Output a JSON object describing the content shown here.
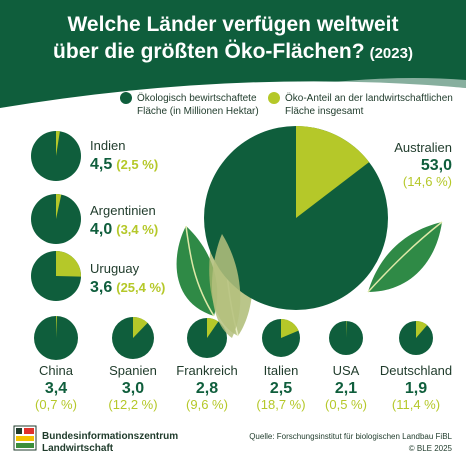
{
  "header": {
    "title_line1": "Welche Länder verfügen weltweit",
    "title_line2": "über die größten Öko-Flächen?",
    "year": "(2023)"
  },
  "legend": {
    "area_line1": "Ökologisch bewirtschaftete",
    "area_line2": "Fläche (in Millionen Hektar)",
    "share_line1": "Öko-Anteil an der landwirtschaftlichen",
    "share_line2": "Fläche insgesamt"
  },
  "colors": {
    "area": "#0f5e3c",
    "share": "#b5c829",
    "header": "#0f5e3c",
    "text": "#1f3b2b"
  },
  "chart_data": {
    "type": "pie",
    "title": "Welche Länder verfügen weltweit über die größten Öko-Flächen? (2023)",
    "series": [
      {
        "name": "Ökologisch bewirtschaftete Fläche (in Millionen Hektar)"
      },
      {
        "name": "Öko-Anteil an der landwirtschaftlichen Fläche insgesamt"
      }
    ],
    "countries": [
      {
        "name": "Australien",
        "area": 53.0,
        "area_label": "53,0",
        "share": 14.6,
        "share_label": "(14,6 %)"
      },
      {
        "name": "Indien",
        "area": 4.5,
        "area_label": "4,5",
        "share": 2.5,
        "share_label": "(2,5 %)"
      },
      {
        "name": "Argentinien",
        "area": 4.0,
        "area_label": "4,0",
        "share": 3.4,
        "share_label": "(3,4 %)"
      },
      {
        "name": "Uruguay",
        "area": 3.6,
        "area_label": "3,6",
        "share": 25.4,
        "share_label": "(25,4 %)"
      },
      {
        "name": "China",
        "area": 3.4,
        "area_label": "3,4",
        "share": 0.7,
        "share_label": "(0,7 %)"
      },
      {
        "name": "Spanien",
        "area": 3.0,
        "area_label": "3,0",
        "share": 12.2,
        "share_label": "(12,2 %)"
      },
      {
        "name": "Frankreich",
        "area": 2.8,
        "area_label": "2,8",
        "share": 9.6,
        "share_label": "(9,6 %)"
      },
      {
        "name": "Italien",
        "area": 2.5,
        "area_label": "2,5",
        "share": 18.7,
        "share_label": "(18,7 %)"
      },
      {
        "name": "USA",
        "area": 2.1,
        "area_label": "2,1",
        "share": 0.5,
        "share_label": "(0,5 %)"
      },
      {
        "name": "Deutschland",
        "area": 1.9,
        "area_label": "1,9",
        "share": 11.4,
        "share_label": "(11,4 %)"
      }
    ]
  },
  "footer": {
    "org_line1": "Bundesinformationszentrum",
    "org_line2": "Landwirtschaft",
    "source": "Quelle: Forschungsinstitut für biologischen Landbau FiBL",
    "copyright": "© BLE 2025"
  }
}
